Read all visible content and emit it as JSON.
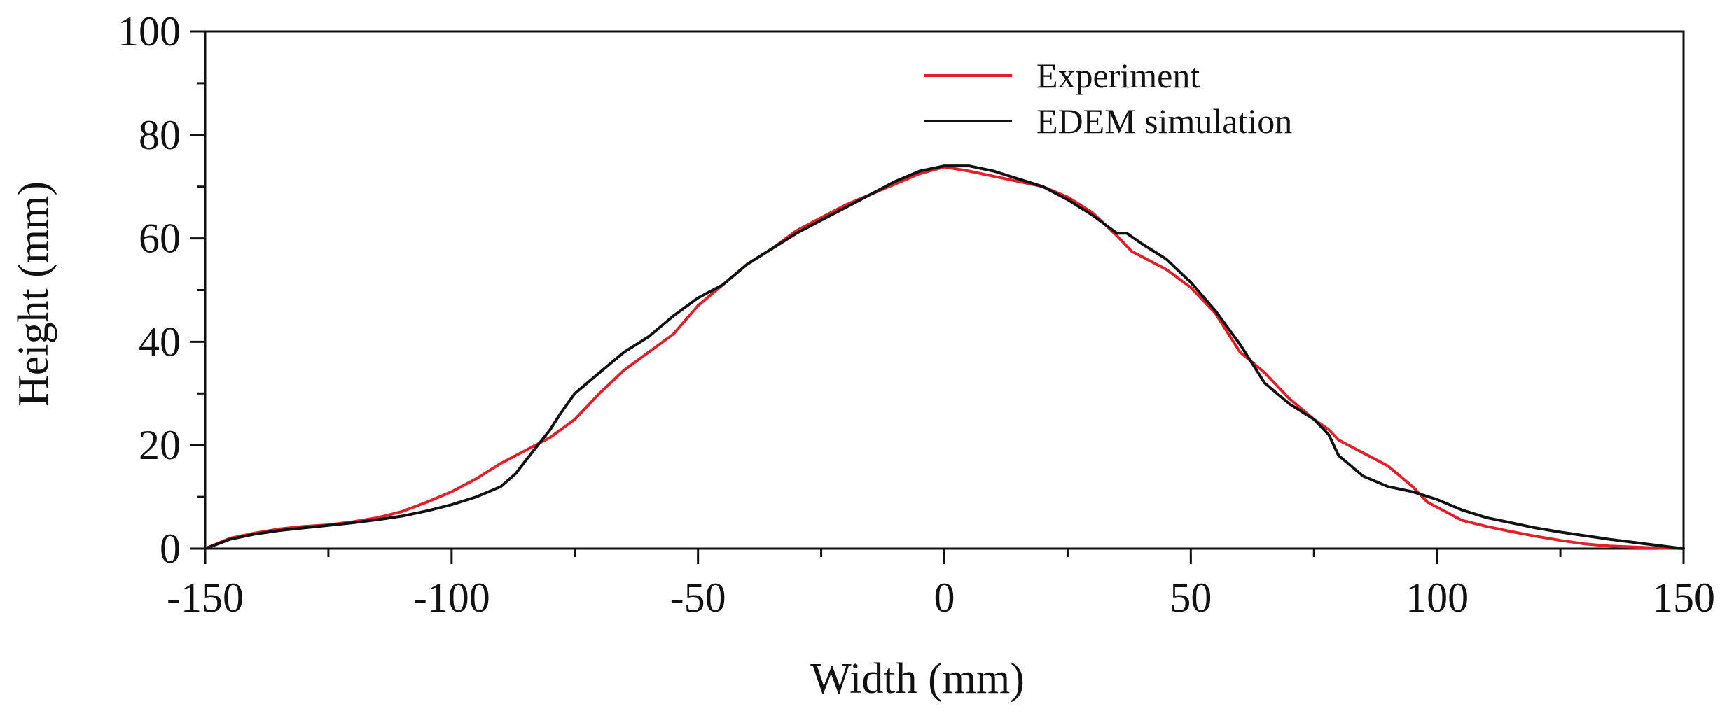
{
  "chart_data": {
    "type": "line",
    "title": "",
    "xlabel": "Width (mm)",
    "ylabel": "Height (mm)",
    "xlim": [
      -150,
      150
    ],
    "ylim": [
      0,
      100
    ],
    "xticks": [
      -150,
      -100,
      -50,
      0,
      50,
      100,
      150
    ],
    "yticks": [
      0,
      20,
      40,
      60,
      80,
      100
    ],
    "xtick_labels": [
      "-150",
      "-100",
      "-50",
      "0",
      "50",
      "100",
      "150"
    ],
    "ytick_labels": [
      "0",
      "20",
      "40",
      "60",
      "80",
      "100"
    ],
    "grid": false,
    "legend_position": "top-center",
    "series": [
      {
        "name": "Experiment",
        "color": "#e0202a",
        "x": [
          -150,
          -145,
          -140,
          -135,
          -130,
          -125,
          -120,
          -115,
          -110,
          -105,
          -100,
          -95,
          -90,
          -85,
          -80,
          -75,
          -70,
          -65,
          -60,
          -55,
          -50,
          -45,
          -40,
          -35,
          -30,
          -25,
          -20,
          -15,
          -10,
          -5,
          0,
          5,
          10,
          15,
          20,
          25,
          30,
          35,
          38,
          40,
          45,
          50,
          55,
          60,
          65,
          70,
          75,
          78,
          80,
          85,
          90,
          95,
          98,
          100,
          105,
          110,
          115,
          120,
          125,
          130,
          135,
          140,
          145,
          150
        ],
        "y": [
          0,
          2,
          3,
          3.8,
          4.3,
          4.6,
          5.2,
          6,
          7.2,
          9,
          11,
          13.5,
          16.5,
          19,
          21.5,
          25,
          30,
          34.5,
          38,
          41.5,
          47,
          51,
          55,
          58,
          61.5,
          64,
          66.5,
          68.5,
          70.5,
          72.5,
          73.8,
          73,
          72,
          71,
          70,
          68,
          65,
          60.5,
          57.5,
          56.5,
          54,
          50.5,
          45.5,
          38,
          34,
          29,
          25,
          23,
          21,
          18.5,
          16,
          12,
          9,
          8,
          5.5,
          4.3,
          3.3,
          2.4,
          1.6,
          0.9,
          0.5,
          0.3,
          0.1,
          0
        ]
      },
      {
        "name": "EDEM simulation",
        "color": "#111111",
        "x": [
          -150,
          -145,
          -140,
          -135,
          -130,
          -125,
          -120,
          -115,
          -110,
          -105,
          -100,
          -95,
          -90,
          -87,
          -85,
          -80,
          -78,
          -75,
          -70,
          -65,
          -60,
          -55,
          -50,
          -45,
          -40,
          -35,
          -30,
          -25,
          -20,
          -15,
          -10,
          -5,
          0,
          5,
          10,
          15,
          20,
          25,
          30,
          35,
          37,
          40,
          45,
          50,
          55,
          60,
          65,
          70,
          75,
          78,
          80,
          85,
          90,
          95,
          100,
          105,
          110,
          115,
          120,
          125,
          130,
          135,
          140,
          145,
          150
        ],
        "y": [
          0,
          1.8,
          2.8,
          3.5,
          4,
          4.5,
          5,
          5.6,
          6.3,
          7.3,
          8.5,
          10,
          12,
          14.5,
          17,
          23,
          26,
          30,
          34,
          38,
          41,
          45,
          48.5,
          51,
          55,
          58,
          61,
          63.5,
          66,
          68.5,
          71,
          73,
          74,
          74,
          73,
          71.5,
          70,
          67.5,
          64.5,
          61,
          61,
          59,
          56,
          51.5,
          46,
          39.5,
          32,
          28,
          25,
          22,
          18,
          14,
          12,
          11,
          9.5,
          7.5,
          6,
          5,
          4,
          3.2,
          2.5,
          1.8,
          1.2,
          0.6,
          0
        ]
      }
    ]
  }
}
